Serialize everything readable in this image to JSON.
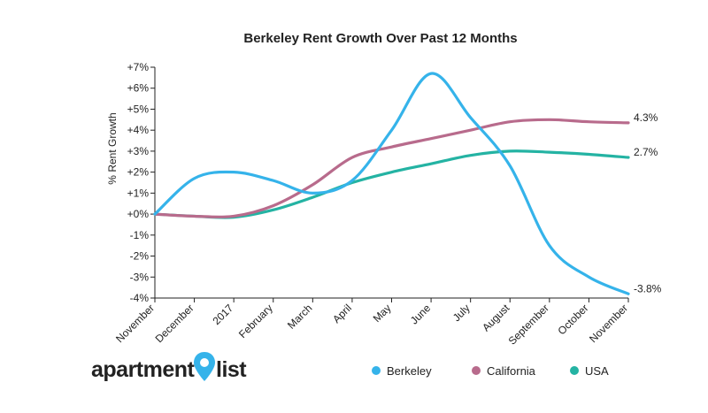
{
  "brand": {
    "logo_left": "apartment",
    "logo_right": "list"
  },
  "chart_data": {
    "type": "line",
    "title": "Berkeley Rent Growth Over Past 12 Months",
    "xlabel": "",
    "ylabel": "% Rent Growth",
    "categories": [
      "November",
      "December",
      "2017",
      "February",
      "March",
      "April",
      "May",
      "June",
      "July",
      "August",
      "September",
      "October",
      "November"
    ],
    "yticks": [
      "+7%",
      "+6%",
      "+5%",
      "+4%",
      "+3%",
      "+2%",
      "+1%",
      "+0%",
      "-1%",
      "-2%",
      "-3%",
      "-4%"
    ],
    "ylim": [
      -4,
      7
    ],
    "series": [
      {
        "name": "Berkeley",
        "color": "#35b3ea",
        "end_label": "-3.8%",
        "values": [
          0.0,
          1.7,
          2.0,
          1.6,
          1.0,
          1.6,
          4.0,
          6.7,
          4.6,
          2.3,
          -1.5,
          -3.0,
          -3.8
        ]
      },
      {
        "name": "California",
        "color": "#b86b8c",
        "end_label": "4.3%",
        "values": [
          0.0,
          -0.1,
          -0.1,
          0.4,
          1.4,
          2.7,
          3.2,
          3.6,
          4.0,
          4.4,
          4.5,
          4.4,
          4.35
        ]
      },
      {
        "name": "USA",
        "color": "#24b3a3",
        "end_label": "2.7%",
        "values": [
          0.0,
          -0.1,
          -0.15,
          0.2,
          0.8,
          1.5,
          2.0,
          2.4,
          2.8,
          3.0,
          2.95,
          2.85,
          2.7
        ]
      }
    ]
  }
}
